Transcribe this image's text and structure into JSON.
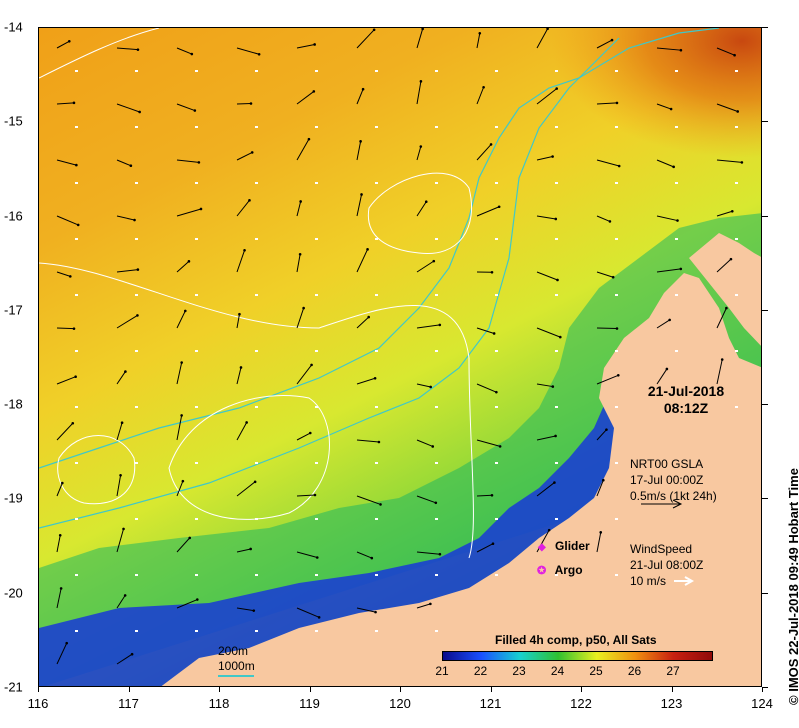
{
  "map": {
    "x_ticks": [
      "116",
      "117",
      "118",
      "119",
      "120",
      "121",
      "122",
      "123",
      "124"
    ],
    "y_ticks": [
      "-14",
      "-15",
      "-16",
      "-17",
      "-18",
      "-19",
      "-20",
      "-21"
    ],
    "date": "21-Jul-2018",
    "time": "08:12Z",
    "gsla": {
      "title": "NRT00 GSLA",
      "date": "17-Jul 00:00Z",
      "scale": "0.5m/s (1kt 24h)"
    },
    "wind": {
      "title": "WindSpeed",
      "date": "21-Jul 08:00Z",
      "scale": "10 m/s"
    },
    "legend": {
      "glider": "Glider",
      "argo": "Argo",
      "glider_color": "#e020e0",
      "argo_color": "#e020e0"
    },
    "isobaths": {
      "shallow": "200m",
      "deep": "1000m",
      "color": "#40c8c8"
    },
    "colorbar": {
      "title": "Filled 4h comp, p50, All Sats",
      "labels": [
        "21",
        "22",
        "23",
        "24",
        "25",
        "26",
        "27"
      ],
      "colors": [
        "#0a0a8a",
        "#1a50ff",
        "#18d0d0",
        "#30c030",
        "#e8f020",
        "#f09010",
        "#c82010",
        "#900a0a"
      ]
    },
    "credit": "IMOS 22-Jul-2018 09:49 Hobart Time",
    "copyright_symbol": "©",
    "land_color": "#f8c8a0"
  }
}
